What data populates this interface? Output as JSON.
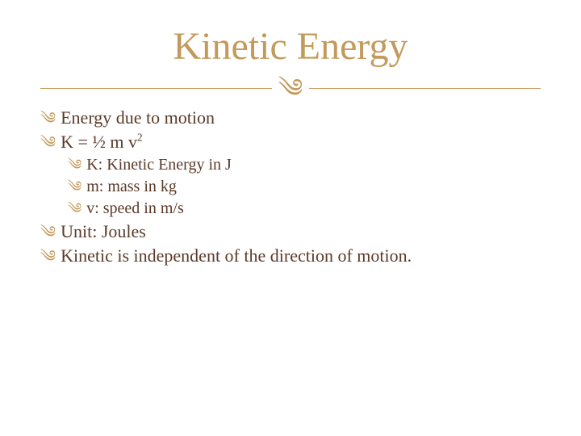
{
  "title": "Kinetic Energy",
  "divider_glyph": "༄",
  "bullet_glyph": "༄",
  "colors": {
    "accent": "#c29a5b",
    "text": "#5a3a28",
    "background": "#ffffff"
  },
  "typography": {
    "title_fontsize": 48,
    "body_fontsize": 22,
    "indent_fontsize": 20,
    "font_family": "Georgia, 'Book Antiqua', Palatino, serif"
  },
  "items": [
    {
      "text": "Energy due to motion",
      "indent": false
    },
    {
      "text": "K = ½ m v",
      "sup": "2",
      "indent": false
    },
    {
      "text": "K: Kinetic Energy in J",
      "indent": true
    },
    {
      "text": "m: mass in kg",
      "indent": true
    },
    {
      "text": "v: speed in m/s",
      "indent": true
    },
    {
      "text": "Unit: Joules",
      "indent": false
    },
    {
      "text": "Kinetic is independent of the direction of motion.",
      "indent": false
    }
  ]
}
